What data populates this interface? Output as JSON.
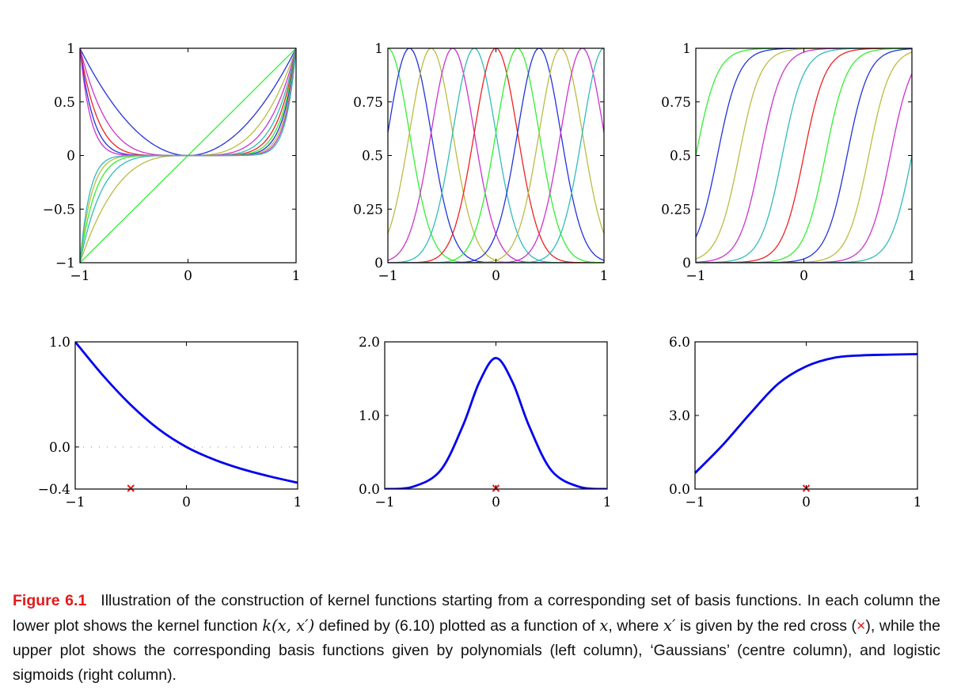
{
  "chart_data": [
    {
      "type": "line",
      "panel": "top-left",
      "description_ref": "polynomial basis functions x^j, j=1..11",
      "x": {
        "min": -1,
        "max": 1,
        "ticks": [
          "−1",
          "0",
          "1"
        ],
        "tick_values": [
          -1,
          0,
          1
        ]
      },
      "y": {
        "min": -1,
        "max": 1,
        "ticks": [
          "−1",
          "−0.5",
          "0",
          "0.5",
          "1"
        ],
        "tick_values": [
          -1,
          -0.5,
          0,
          0.5,
          1
        ]
      },
      "series": [
        {
          "kind": "power",
          "exponent": 1,
          "color": "#33ee33"
        },
        {
          "kind": "power",
          "exponent": 2,
          "color": "#2233dd"
        },
        {
          "kind": "power",
          "exponent": 3,
          "color": "#bbbb44"
        },
        {
          "kind": "power",
          "exponent": 4,
          "color": "#cc33cc"
        },
        {
          "kind": "power",
          "exponent": 5,
          "color": "#33bbbb"
        },
        {
          "kind": "power",
          "exponent": 6,
          "color": "#ee2222"
        },
        {
          "kind": "power",
          "exponent": 7,
          "color": "#33ee33"
        },
        {
          "kind": "power",
          "exponent": 8,
          "color": "#2233dd"
        },
        {
          "kind": "power",
          "exponent": 9,
          "color": "#bbbb44"
        },
        {
          "kind": "power",
          "exponent": 10,
          "color": "#cc33cc"
        },
        {
          "kind": "power",
          "exponent": 11,
          "color": "#33bbbb"
        }
      ]
    },
    {
      "type": "line",
      "panel": "top-centre",
      "x": {
        "min": -1,
        "max": 1,
        "ticks": [
          "−1",
          "0",
          "1"
        ],
        "tick_values": [
          -1,
          0,
          1
        ]
      },
      "y": {
        "min": 0,
        "max": 1,
        "ticks": [
          "0",
          "0.25",
          "0.5",
          "0.75",
          "1"
        ],
        "tick_values": [
          0,
          0.25,
          0.5,
          0.75,
          1
        ]
      },
      "width_s": 0.2,
      "series": [
        {
          "kind": "gaussian",
          "center": -1.0,
          "color": "#33ee33"
        },
        {
          "kind": "gaussian",
          "center": -0.8,
          "color": "#2233dd"
        },
        {
          "kind": "gaussian",
          "center": -0.6,
          "color": "#bbbb44"
        },
        {
          "kind": "gaussian",
          "center": -0.4,
          "color": "#cc33cc"
        },
        {
          "kind": "gaussian",
          "center": -0.2,
          "color": "#33bbbb"
        },
        {
          "kind": "gaussian",
          "center": 0.0,
          "color": "#ee2222"
        },
        {
          "kind": "gaussian",
          "center": 0.2,
          "color": "#33ee33"
        },
        {
          "kind": "gaussian",
          "center": 0.4,
          "color": "#2233dd"
        },
        {
          "kind": "gaussian",
          "center": 0.6,
          "color": "#bbbb44"
        },
        {
          "kind": "gaussian",
          "center": 0.8,
          "color": "#cc33cc"
        },
        {
          "kind": "gaussian",
          "center": 1.0,
          "color": "#33bbbb"
        }
      ]
    },
    {
      "type": "line",
      "panel": "top-right",
      "x": {
        "min": -1,
        "max": 1,
        "ticks": [
          "−1",
          "0",
          "1"
        ],
        "tick_values": [
          -1,
          0,
          1
        ]
      },
      "y": {
        "min": 0,
        "max": 1,
        "ticks": [
          "0",
          "0.25",
          "0.5",
          "0.75",
          "1"
        ],
        "tick_values": [
          0,
          0.25,
          0.5,
          0.75,
          1
        ]
      },
      "scale_s": 0.1,
      "series": [
        {
          "kind": "sigmoid",
          "center": -1.0,
          "color": "#33ee33"
        },
        {
          "kind": "sigmoid",
          "center": -0.8,
          "color": "#2233dd"
        },
        {
          "kind": "sigmoid",
          "center": -0.6,
          "color": "#bbbb44"
        },
        {
          "kind": "sigmoid",
          "center": -0.4,
          "color": "#cc33cc"
        },
        {
          "kind": "sigmoid",
          "center": -0.2,
          "color": "#33bbbb"
        },
        {
          "kind": "sigmoid",
          "center": 0.0,
          "color": "#ee2222"
        },
        {
          "kind": "sigmoid",
          "center": 0.2,
          "color": "#33ee33"
        },
        {
          "kind": "sigmoid",
          "center": 0.4,
          "color": "#2233dd"
        },
        {
          "kind": "sigmoid",
          "center": 0.6,
          "color": "#bbbb44"
        },
        {
          "kind": "sigmoid",
          "center": 0.8,
          "color": "#cc33cc"
        },
        {
          "kind": "sigmoid",
          "center": 1.0,
          "color": "#33bbbb"
        }
      ]
    },
    {
      "type": "line",
      "panel": "bottom-left",
      "x": {
        "min": -1,
        "max": 1,
        "ticks": [
          "−1",
          "0",
          "1"
        ],
        "tick_values": [
          -1,
          0,
          1
        ]
      },
      "y": {
        "min": -0.4,
        "max": 1.0,
        "ticks": [
          "−0.4",
          "0.0",
          "1.0"
        ],
        "tick_values": [
          -0.4,
          0.0,
          1.0
        ]
      },
      "zero_line": "dotted",
      "kernel_color": "#0000ee",
      "marker_color": "#e31a1c",
      "x_prime": -0.5,
      "kernel_points": [
        [
          -1.0,
          1.0
        ],
        [
          -0.75,
          0.68
        ],
        [
          -0.5,
          0.4
        ],
        [
          -0.25,
          0.17
        ],
        [
          0.0,
          0.0
        ],
        [
          0.25,
          -0.12
        ],
        [
          0.5,
          -0.21
        ],
        [
          0.75,
          -0.28
        ],
        [
          1.0,
          -0.34
        ]
      ]
    },
    {
      "type": "line",
      "panel": "bottom-centre",
      "x": {
        "min": -1,
        "max": 1,
        "ticks": [
          "−1",
          "0",
          "1"
        ],
        "tick_values": [
          -1,
          0,
          1
        ]
      },
      "y": {
        "min": 0.0,
        "max": 2.0,
        "ticks": [
          "0.0",
          "1.0",
          "2.0"
        ],
        "tick_values": [
          0.0,
          1.0,
          2.0
        ]
      },
      "kernel_color": "#0000ee",
      "marker_color": "#e31a1c",
      "x_prime": 0.0,
      "kernel_points": [
        [
          -1.0,
          0.0
        ],
        [
          -0.75,
          0.03
        ],
        [
          -0.5,
          0.25
        ],
        [
          -0.3,
          0.85
        ],
        [
          -0.15,
          1.45
        ],
        [
          0.0,
          1.78
        ],
        [
          0.15,
          1.45
        ],
        [
          0.3,
          0.85
        ],
        [
          0.5,
          0.25
        ],
        [
          0.75,
          0.03
        ],
        [
          1.0,
          0.0
        ]
      ]
    },
    {
      "type": "line",
      "panel": "bottom-right",
      "x": {
        "min": -1,
        "max": 1,
        "ticks": [
          "−1",
          "0",
          "1"
        ],
        "tick_values": [
          -1,
          0,
          1
        ]
      },
      "y": {
        "min": 0.0,
        "max": 6.0,
        "ticks": [
          "0.0",
          "3.0",
          "6.0"
        ],
        "tick_values": [
          0.0,
          3.0,
          6.0
        ]
      },
      "kernel_color": "#0000ee",
      "marker_color": "#e31a1c",
      "x_prime": 0.0,
      "kernel_points": [
        [
          -1.0,
          0.65
        ],
        [
          -0.75,
          1.8
        ],
        [
          -0.5,
          3.1
        ],
        [
          -0.25,
          4.3
        ],
        [
          0.0,
          5.0
        ],
        [
          0.25,
          5.35
        ],
        [
          0.5,
          5.45
        ],
        [
          0.75,
          5.48
        ],
        [
          1.0,
          5.5
        ]
      ]
    }
  ],
  "caption": {
    "label": "Figure 6.1",
    "text_1": "Illustration of the construction of kernel functions starting from a corresponding set of basis functions. In each column the lower plot shows the kernel function ",
    "math_1": "k(x, x′)",
    "text_2": " defined by (6.10) plotted as a function of ",
    "math_2": "x",
    "text_3": ", where ",
    "math_3": "x′",
    "text_4": " is given by the red cross (",
    "cross": "×",
    "text_5": "), while the upper plot shows the corresponding basis functions given by polynomials (left column), ‘Gaussians’ (centre column), and logistic sigmoids (right column)."
  }
}
